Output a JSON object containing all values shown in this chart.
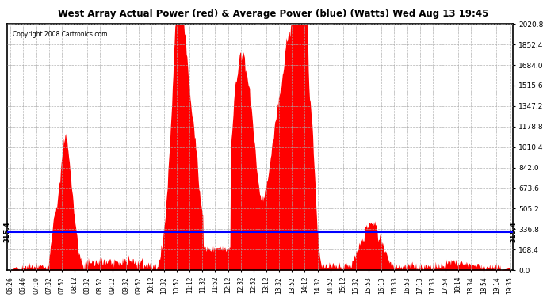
{
  "title": "West Array Actual Power (red) & Average Power (blue) (Watts) Wed Aug 13 19:45",
  "copyright": "Copyright 2008 Cartronics.com",
  "average_value": 315.4,
  "y_ticks": [
    0.0,
    168.4,
    336.8,
    505.2,
    673.6,
    842.0,
    1010.4,
    1178.8,
    1347.2,
    1515.6,
    1684.0,
    1852.4,
    2020.8
  ],
  "x_tick_labels": [
    "06:26",
    "06:46",
    "07:10",
    "07:32",
    "07:52",
    "08:12",
    "08:32",
    "08:52",
    "09:12",
    "09:32",
    "09:52",
    "10:12",
    "10:32",
    "10:52",
    "11:12",
    "11:32",
    "11:52",
    "12:12",
    "12:32",
    "12:52",
    "13:12",
    "13:32",
    "13:52",
    "14:12",
    "14:32",
    "14:52",
    "15:12",
    "15:32",
    "15:53",
    "16:13",
    "16:33",
    "16:53",
    "17:13",
    "17:33",
    "17:54",
    "18:14",
    "18:34",
    "18:54",
    "19:14",
    "19:35"
  ],
  "bg_color": "#ffffff",
  "plot_bg_color": "#ffffff",
  "grid_color": "#aaaaaa",
  "fill_color": "#ff0000",
  "line_color": "#0000ff",
  "border_color": "#000000",
  "title_color": "#000000",
  "copyright_color": "#000000"
}
